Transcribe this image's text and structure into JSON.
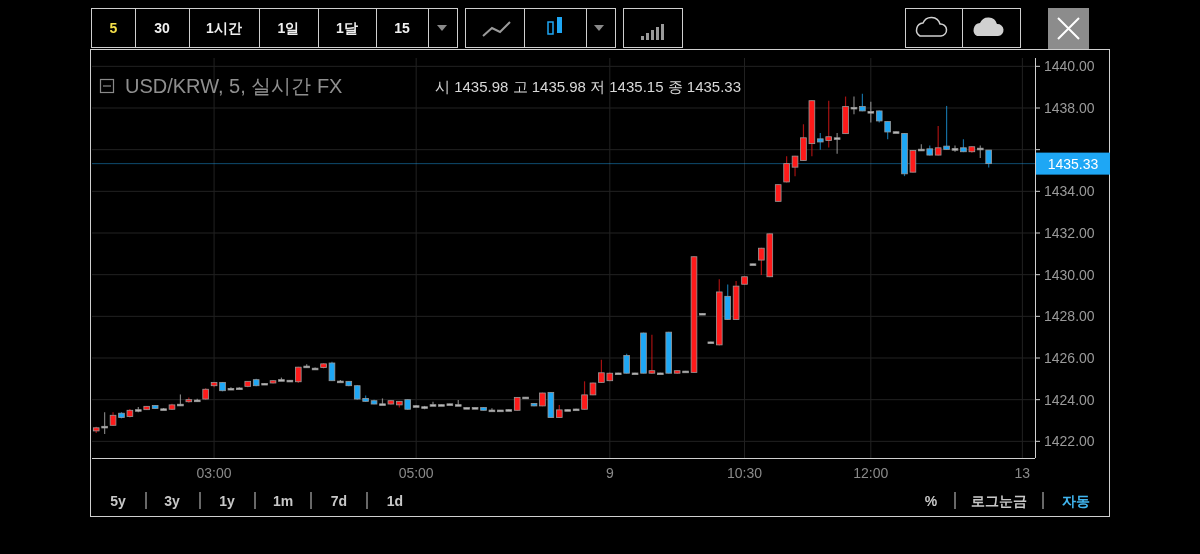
{
  "chart_data": {
    "type": "candlestick",
    "title": "USD/KRW, 5, 실시간 FX",
    "subtitle": "시 1435.98 고 1435.98 저 1435.15 종 1435.33",
    "annotations": [
      "5",
      "30",
      "1시간",
      "1일",
      "1달",
      "15",
      "5y",
      "3y",
      "1y",
      "1m",
      "7d",
      "1d",
      "%",
      "로그눈금",
      "자동"
    ],
    "categories": [
      null,
      null,
      null,
      null,
      null,
      null,
      null,
      null,
      null,
      null,
      null,
      null,
      null,
      null,
      "03:00",
      null,
      null,
      null,
      null,
      null,
      null,
      null,
      null,
      null,
      null,
      null,
      null,
      null,
      null,
      null,
      null,
      null,
      null,
      null,
      null,
      null,
      null,
      null,
      "05:00",
      null,
      null,
      null,
      null,
      null,
      null,
      null,
      null,
      null,
      null,
      null,
      null,
      null,
      null,
      null,
      null,
      null,
      null,
      null,
      null,
      null,
      null,
      "9",
      null,
      null,
      null,
      null,
      null,
      null,
      null,
      null,
      null,
      null,
      null,
      null,
      null,
      null,
      null,
      "10:30",
      null,
      null,
      null,
      null,
      null,
      null,
      null,
      null,
      null,
      null,
      null,
      null,
      null,
      null,
      "12:00",
      null,
      null,
      null,
      null,
      null,
      null,
      null,
      null,
      null,
      null,
      null,
      null,
      null,
      null,
      null,
      null,
      null,
      "13",
      null
    ],
    "ohlc": [
      [
        1422.5,
        1422.7,
        1422.4,
        1422.65
      ],
      [
        1422.7,
        1423.4,
        1422.35,
        1422.72
      ],
      [
        1422.77,
        1423.4,
        1422.75,
        1423.25
      ],
      [
        1423.35,
        1423.4,
        1423.1,
        1423.14
      ],
      [
        1423.19,
        1423.55,
        1423.15,
        1423.49
      ],
      [
        1423.5,
        1423.65,
        1423.4,
        1423.52
      ],
      [
        1423.52,
        1423.7,
        1423.5,
        1423.68
      ],
      [
        1423.72,
        1423.75,
        1423.55,
        1423.58
      ],
      [
        1423.55,
        1423.6,
        1423.5,
        1423.56
      ],
      [
        1423.54,
        1423.8,
        1423.5,
        1423.75
      ],
      [
        1423.76,
        1424.25,
        1423.7,
        1423.78
      ],
      [
        1423.9,
        1424.1,
        1423.85,
        1424.0
      ],
      [
        1423.97,
        1424.05,
        1423.9,
        1423.98
      ],
      [
        1424.03,
        1424.55,
        1424.0,
        1424.5
      ],
      [
        1424.67,
        1424.85,
        1424.6,
        1424.83
      ],
      [
        1424.83,
        1424.85,
        1424.4,
        1424.43
      ],
      [
        1424.53,
        1424.6,
        1424.5,
        1424.54
      ],
      [
        1424.55,
        1424.6,
        1424.5,
        1424.56
      ],
      [
        1424.64,
        1424.9,
        1424.6,
        1424.88
      ],
      [
        1424.96,
        1425.0,
        1424.65,
        1424.67
      ],
      [
        1424.77,
        1424.8,
        1424.75,
        1424.78
      ],
      [
        1424.8,
        1424.95,
        1424.78,
        1424.91
      ],
      [
        1424.95,
        1425.06,
        1424.9,
        1424.96
      ],
      [
        1424.92,
        1424.95,
        1424.9,
        1424.93
      ],
      [
        1424.86,
        1425.58,
        1424.8,
        1425.56
      ],
      [
        1425.6,
        1425.7,
        1425.55,
        1425.61
      ],
      [
        1425.5,
        1425.55,
        1425.48,
        1425.51
      ],
      [
        1425.54,
        1425.75,
        1425.5,
        1425.72
      ],
      [
        1425.76,
        1425.82,
        1424.9,
        1424.91
      ],
      [
        1424.88,
        1424.95,
        1424.85,
        1424.89
      ],
      [
        1424.88,
        1424.9,
        1424.65,
        1424.67
      ],
      [
        1424.67,
        1424.7,
        1424.0,
        1424.03
      ],
      [
        1424.06,
        1424.2,
        1423.9,
        1423.92
      ],
      [
        1423.95,
        1424.0,
        1423.78,
        1423.79
      ],
      [
        1423.79,
        1424.06,
        1423.78,
        1423.8
      ],
      [
        1423.79,
        1423.97,
        1423.77,
        1423.95
      ],
      [
        1423.75,
        1423.94,
        1423.62,
        1423.92
      ],
      [
        1424.0,
        1424.02,
        1423.52,
        1423.54
      ],
      [
        1423.7,
        1423.75,
        1423.68,
        1423.71
      ],
      [
        1423.66,
        1423.7,
        1423.54,
        1423.65
      ],
      [
        1423.75,
        1423.9,
        1423.73,
        1423.76
      ],
      [
        1423.75,
        1423.77,
        1423.73,
        1423.76
      ],
      [
        1423.79,
        1423.81,
        1423.77,
        1423.8
      ],
      [
        1423.75,
        1423.98,
        1423.73,
        1423.76
      ],
      [
        1423.61,
        1423.63,
        1423.59,
        1423.62
      ],
      [
        1423.61,
        1423.63,
        1423.59,
        1423.62
      ],
      [
        1423.62,
        1423.64,
        1423.48,
        1423.49
      ],
      [
        1423.49,
        1423.59,
        1423.47,
        1423.5
      ],
      [
        1423.49,
        1423.51,
        1423.47,
        1423.5
      ],
      [
        1423.51,
        1423.53,
        1423.49,
        1423.52
      ],
      [
        1423.49,
        1424.13,
        1423.47,
        1424.11
      ],
      [
        1424.11,
        1424.13,
        1424.09,
        1424.12
      ],
      [
        1423.82,
        1423.84,
        1423.69,
        1423.7
      ],
      [
        1423.7,
        1424.34,
        1423.68,
        1424.32
      ],
      [
        1424.35,
        1424.37,
        1423.13,
        1423.14
      ],
      [
        1423.14,
        1423.74,
        1423.12,
        1423.51
      ],
      [
        1423.51,
        1423.53,
        1423.49,
        1423.52
      ],
      [
        1423.54,
        1423.56,
        1423.52,
        1423.55
      ],
      [
        1423.54,
        1424.88,
        1423.52,
        1424.23
      ],
      [
        1424.23,
        1424.82,
        1424.21,
        1424.8
      ],
      [
        1424.83,
        1425.92,
        1424.8,
        1425.29
      ],
      [
        1424.91,
        1425.3,
        1424.89,
        1425.27
      ],
      [
        1425.27,
        1425.29,
        1425.25,
        1425.28
      ],
      [
        1426.12,
        1426.2,
        1425.26,
        1425.27
      ],
      [
        1425.27,
        1425.29,
        1425.25,
        1425.28
      ],
      [
        1427.2,
        1427.22,
        1425.26,
        1425.27
      ],
      [
        1425.27,
        1427.12,
        1425.25,
        1425.39
      ],
      [
        1425.27,
        1425.29,
        1425.25,
        1425.28
      ],
      [
        1427.24,
        1427.26,
        1425.26,
        1425.27
      ],
      [
        1425.27,
        1425.41,
        1425.25,
        1425.39
      ],
      [
        1425.36,
        1425.38,
        1425.34,
        1425.37
      ],
      [
        1425.31,
        1430.88,
        1425.29,
        1430.86
      ],
      [
        1428.13,
        1428.15,
        1428.11,
        1428.14
      ],
      [
        1426.76,
        1426.78,
        1426.74,
        1426.77
      ],
      [
        1426.63,
        1429.78,
        1426.6,
        1429.17
      ],
      [
        1428.96,
        1429.53,
        1427.83,
        1427.85
      ],
      [
        1427.85,
        1429.7,
        1427.83,
        1429.45
      ],
      [
        1429.54,
        1429.92,
        1429.52,
        1429.9
      ],
      [
        1430.51,
        1430.53,
        1430.49,
        1430.52
      ],
      [
        1430.7,
        1431.29,
        1429.98,
        1431.27
      ],
      [
        1429.9,
        1431.98,
        1429.88,
        1431.96
      ],
      [
        1433.52,
        1434.34,
        1433.5,
        1434.32
      ],
      [
        1434.45,
        1435.69,
        1434.43,
        1435.33
      ],
      [
        1435.16,
        1435.71,
        1434.73,
        1435.69
      ],
      [
        1435.48,
        1437.22,
        1435.46,
        1436.57
      ],
      [
        1436.29,
        1438.37,
        1435.69,
        1438.35
      ],
      [
        1436.52,
        1436.8,
        1436.0,
        1436.37
      ],
      [
        1436.44,
        1438.35,
        1436.1,
        1436.62
      ],
      [
        1436.56,
        1436.8,
        1435.8,
        1436.57
      ],
      [
        1436.77,
        1438.55,
        1436.75,
        1438.07
      ],
      [
        1438.02,
        1438.55,
        1437.7,
        1438.03
      ],
      [
        1438.07,
        1438.68,
        1437.85,
        1437.86
      ],
      [
        1437.82,
        1438.3,
        1437.3,
        1437.83
      ],
      [
        1437.86,
        1437.88,
        1437.3,
        1437.38
      ],
      [
        1437.35,
        1437.37,
        1436.5,
        1436.85
      ],
      [
        1436.85,
        1436.87,
        1436.83,
        1436.86
      ],
      [
        1436.78,
        1436.8,
        1434.73,
        1434.84
      ],
      [
        1434.92,
        1435.98,
        1434.9,
        1435.96
      ],
      [
        1436.01,
        1436.26,
        1435.95,
        1436.02
      ],
      [
        1436.04,
        1436.2,
        1435.72,
        1435.74
      ],
      [
        1435.74,
        1437.14,
        1435.72,
        1436.09
      ],
      [
        1436.17,
        1438.1,
        1435.99,
        1436.01
      ],
      [
        1436.04,
        1436.2,
        1435.9,
        1436.05
      ],
      [
        1436.09,
        1436.5,
        1435.88,
        1435.9
      ],
      [
        1435.9,
        1436.16,
        1435.85,
        1436.14
      ],
      [
        1436.06,
        1436.2,
        1435.6,
        1436.07
      ],
      [
        1435.98,
        1435.98,
        1435.15,
        1435.33
      ],
      null,
      null,
      null,
      null,
      null
    ],
    "colors": [
      "#ff1a1a",
      "#c0c0c0",
      "#ff1a1a",
      "#1ea7f5",
      "#ff1a1a",
      "#c0c0c0",
      "#ff1a1a",
      "#1ea7f5",
      "#c0c0c0",
      "#ff1a1a",
      "#c0c0c0",
      "#ff1a1a",
      "#c0c0c0",
      "#ff1a1a",
      "#ff1a1a",
      "#1ea7f5",
      "#c0c0c0",
      "#c0c0c0",
      "#ff1a1a",
      "#1ea7f5",
      "#c0c0c0",
      "#ff1a1a",
      "#c0c0c0",
      "#c0c0c0",
      "#ff1a1a",
      "#c0c0c0",
      "#c0c0c0",
      "#ff1a1a",
      "#1ea7f5",
      "#c0c0c0",
      "#1ea7f5",
      "#1ea7f5",
      "#1ea7f5",
      "#1ea7f5",
      "#c0c0c0",
      "#ff1a1a",
      "#ff1a1a",
      "#1ea7f5",
      "#c0c0c0",
      "#c0c0c0",
      "#c0c0c0",
      "#c0c0c0",
      "#c0c0c0",
      "#c0c0c0",
      "#c0c0c0",
      "#c0c0c0",
      "#1ea7f5",
      "#c0c0c0",
      "#c0c0c0",
      "#c0c0c0",
      "#ff1a1a",
      "#c0c0c0",
      "#1ea7f5",
      "#ff1a1a",
      "#1ea7f5",
      "#ff1a1a",
      "#c0c0c0",
      "#c0c0c0",
      "#ff1a1a",
      "#ff1a1a",
      "#ff1a1a",
      "#ff1a1a",
      "#c0c0c0",
      "#1ea7f5",
      "#c0c0c0",
      "#1ea7f5",
      "#ff1a1a",
      "#c0c0c0",
      "#1ea7f5",
      "#ff1a1a",
      "#c0c0c0",
      "#ff1a1a",
      "#c0c0c0",
      "#c0c0c0",
      "#ff1a1a",
      "#1ea7f5",
      "#ff1a1a",
      "#ff1a1a",
      "#c0c0c0",
      "#ff1a1a",
      "#ff1a1a",
      "#ff1a1a",
      "#ff1a1a",
      "#ff1a1a",
      "#ff1a1a",
      "#ff1a1a",
      "#1ea7f5",
      "#ff1a1a",
      "#c0c0c0",
      "#ff1a1a",
      "#c0c0c0",
      "#1ea7f5",
      "#c0c0c0",
      "#1ea7f5",
      "#1ea7f5",
      "#c0c0c0",
      "#1ea7f5",
      "#ff1a1a",
      "#c0c0c0",
      "#1ea7f5",
      "#ff1a1a",
      "#1ea7f5",
      "#c0c0c0",
      "#1ea7f5",
      "#ff1a1a",
      "#c0c0c0",
      "#1ea7f5",
      null,
      null,
      null,
      null,
      null
    ],
    "ylim": [
      1421.2,
      1440.4
    ],
    "yticks": [
      {
        "value": 1422,
        "label": "1422.00"
      },
      {
        "value": 1424,
        "label": "1424.00"
      },
      {
        "value": 1426,
        "label": "1426.00"
      },
      {
        "value": 1428,
        "label": "1428.00"
      },
      {
        "value": 1430,
        "label": "1430.00"
      },
      {
        "value": 1432,
        "label": "1432.00"
      },
      {
        "value": 1434,
        "label": "1434.00"
      },
      {
        "value": 1436,
        "label": null
      },
      {
        "value": 1438,
        "label": "1438.00"
      },
      {
        "value": 1440,
        "label": "1440.00"
      }
    ],
    "ref_lines": [
      {
        "axis": "y",
        "value": 1435.33,
        "label": "1435.33",
        "color": "#1ea7f5"
      }
    ],
    "grid": true
  }
}
